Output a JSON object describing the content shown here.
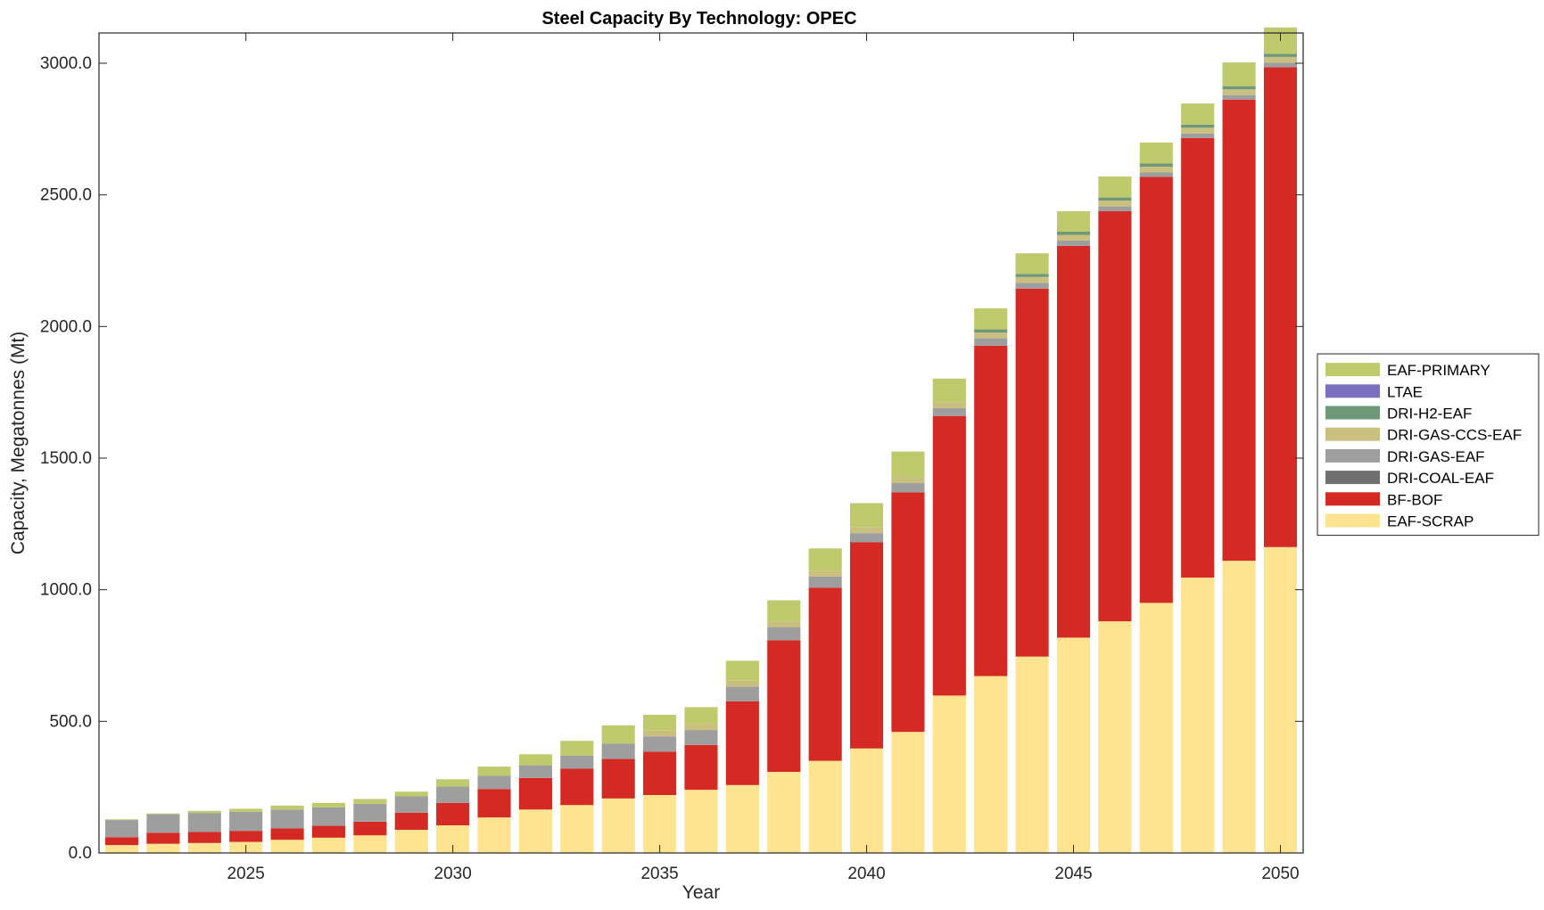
{
  "chart_data": {
    "type": "bar",
    "stacked": true,
    "title": "Steel Capacity By Technology: OPEC",
    "xlabel": "Year",
    "ylabel": "Capacity, Megatonnes (Mt)",
    "ylim": [
      0,
      3115
    ],
    "xlim": [
      2021.45,
      2050.55
    ],
    "yticks": [
      0,
      500,
      1000,
      1500,
      2000,
      2500,
      3000
    ],
    "ytick_labels": [
      "0.0",
      "500.0",
      "1000.0",
      "1500.0",
      "2000.0",
      "2500.0",
      "3000.0"
    ],
    "xticks": [
      2025,
      2030,
      2035,
      2040,
      2045,
      2050
    ],
    "xtick_labels": [
      "2025",
      "2030",
      "2035",
      "2040",
      "2045",
      "2050"
    ],
    "grid": false,
    "legend_position": "right",
    "categories": [
      2022,
      2023,
      2024,
      2025,
      2026,
      2027,
      2028,
      2029,
      2030,
      2031,
      2032,
      2033,
      2034,
      2035,
      2036,
      2037,
      2038,
      2039,
      2040,
      2041,
      2042,
      2043,
      2044,
      2045,
      2046,
      2047,
      2048,
      2049,
      2050
    ],
    "series": [
      {
        "name": "EAF-SCRAP",
        "color": "#fee391",
        "values": [
          30,
          35,
          38,
          42,
          50,
          58,
          67,
          88,
          105,
          135,
          165,
          182,
          207,
          220,
          240,
          258,
          308,
          350,
          397,
          460,
          598,
          672,
          746,
          818,
          880,
          950,
          1046,
          1110,
          1162
        ]
      },
      {
        "name": "BF-BOF",
        "color": "#d42a23",
        "values": [
          30,
          42,
          42,
          42,
          43,
          45,
          52,
          65,
          85,
          108,
          120,
          138,
          150,
          165,
          170,
          318,
          500,
          658,
          783,
          910,
          1062,
          1255,
          1398,
          1488,
          1558,
          1618,
          1670,
          1752,
          1823
        ]
      },
      {
        "name": "DRI-COAL-EAF",
        "color": "#707070",
        "values": [
          0,
          0,
          0,
          0,
          0,
          0,
          0,
          0,
          0,
          0,
          0,
          0,
          0,
          0,
          0,
          0,
          0,
          0,
          0,
          0,
          0,
          0,
          0,
          0,
          0,
          0,
          0,
          0,
          0
        ]
      },
      {
        "name": "DRI-GAS-EAF",
        "color": "#9e9e9e",
        "values": [
          65,
          70,
          72,
          72,
          72,
          70,
          68,
          62,
          62,
          50,
          48,
          50,
          58,
          58,
          57,
          56,
          50,
          42,
          35,
          35,
          30,
          28,
          22,
          20,
          18,
          17,
          17,
          17,
          17
        ]
      },
      {
        "name": "DRI-GAS-CCS-EAF",
        "color": "#c9bf7f",
        "values": [
          0,
          0,
          0,
          0,
          0,
          0,
          0,
          0,
          0,
          0,
          0,
          0,
          0,
          22,
          22,
          22,
          22,
          22,
          22,
          22,
          22,
          22,
          22,
          22,
          22,
          22,
          22,
          22,
          22
        ]
      },
      {
        "name": "DRI-H2-EAF",
        "color": "#6e9878",
        "values": [
          0,
          0,
          0,
          0,
          0,
          0,
          0,
          0,
          0,
          0,
          0,
          0,
          0,
          0,
          0,
          0,
          0,
          0,
          0,
          0,
          0,
          12,
          12,
          12,
          12,
          12,
          12,
          12,
          12
        ]
      },
      {
        "name": "LTAE",
        "color": "#7a70bf",
        "values": [
          0,
          0,
          0,
          0,
          0,
          0,
          0,
          0,
          0,
          0,
          0,
          0,
          0,
          0,
          0,
          0,
          0,
          0,
          0,
          0,
          0,
          0,
          0,
          0,
          0,
          0,
          0,
          0,
          0
        ]
      },
      {
        "name": "EAF-PRIMARY",
        "color": "#bfca6c",
        "values": [
          3,
          3,
          8,
          12,
          15,
          17,
          18,
          18,
          28,
          35,
          42,
          56,
          70,
          60,
          65,
          76,
          80,
          85,
          92,
          98,
          90,
          80,
          78,
          78,
          80,
          80,
          80,
          90,
          100
        ]
      }
    ]
  }
}
